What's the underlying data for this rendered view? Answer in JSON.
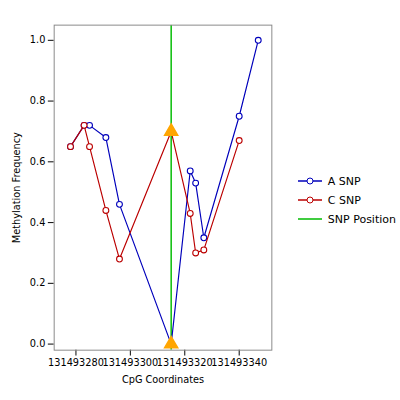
{
  "chart_data": {
    "type": "line",
    "xlabel": "CpG Coordinates",
    "ylabel": "Methylation Frequency",
    "xlim": [
      131493272,
      131493352
    ],
    "ylim": [
      -0.02,
      1.05
    ],
    "xticks": [
      131493280,
      131493300,
      131493320,
      131493340
    ],
    "yticks": [
      {
        "value": 0.0,
        "label": "0.0"
      },
      0.2,
      0.4,
      0.6,
      0.8,
      {
        "value": 1.0,
        "label": "1.0"
      }
    ],
    "grid": false,
    "legend": "right",
    "series": [
      {
        "name": "A SNP",
        "color": "#0000bb",
        "marker": "circle",
        "x": [
          131493278,
          131493283,
          131493285,
          131493291,
          131493296,
          131493315,
          131493322,
          131493324,
          131493327,
          131493340,
          131493347
        ],
        "values": [
          0.65,
          0.72,
          0.72,
          0.68,
          0.46,
          0.0,
          0.57,
          0.53,
          0.35,
          0.75,
          1.0
        ]
      },
      {
        "name": "C SNP",
        "color": "#bb0000",
        "marker": "circle",
        "x": [
          131493278,
          131493283,
          131493285,
          131493291,
          131493296,
          131493315,
          131493322,
          131493324,
          131493327,
          131493340
        ],
        "values": [
          0.65,
          0.72,
          0.65,
          0.44,
          0.28,
          0.7,
          0.43,
          0.3,
          0.31,
          0.67
        ]
      }
    ],
    "vlines": [
      {
        "name": "SNP Position",
        "x": 131493315,
        "color": "#00bb00"
      }
    ],
    "markers": {
      "x": [
        131493315,
        131493315
      ],
      "values": [
        0.7,
        0.0
      ],
      "color": "#FFA500",
      "marker": "triangle"
    }
  }
}
